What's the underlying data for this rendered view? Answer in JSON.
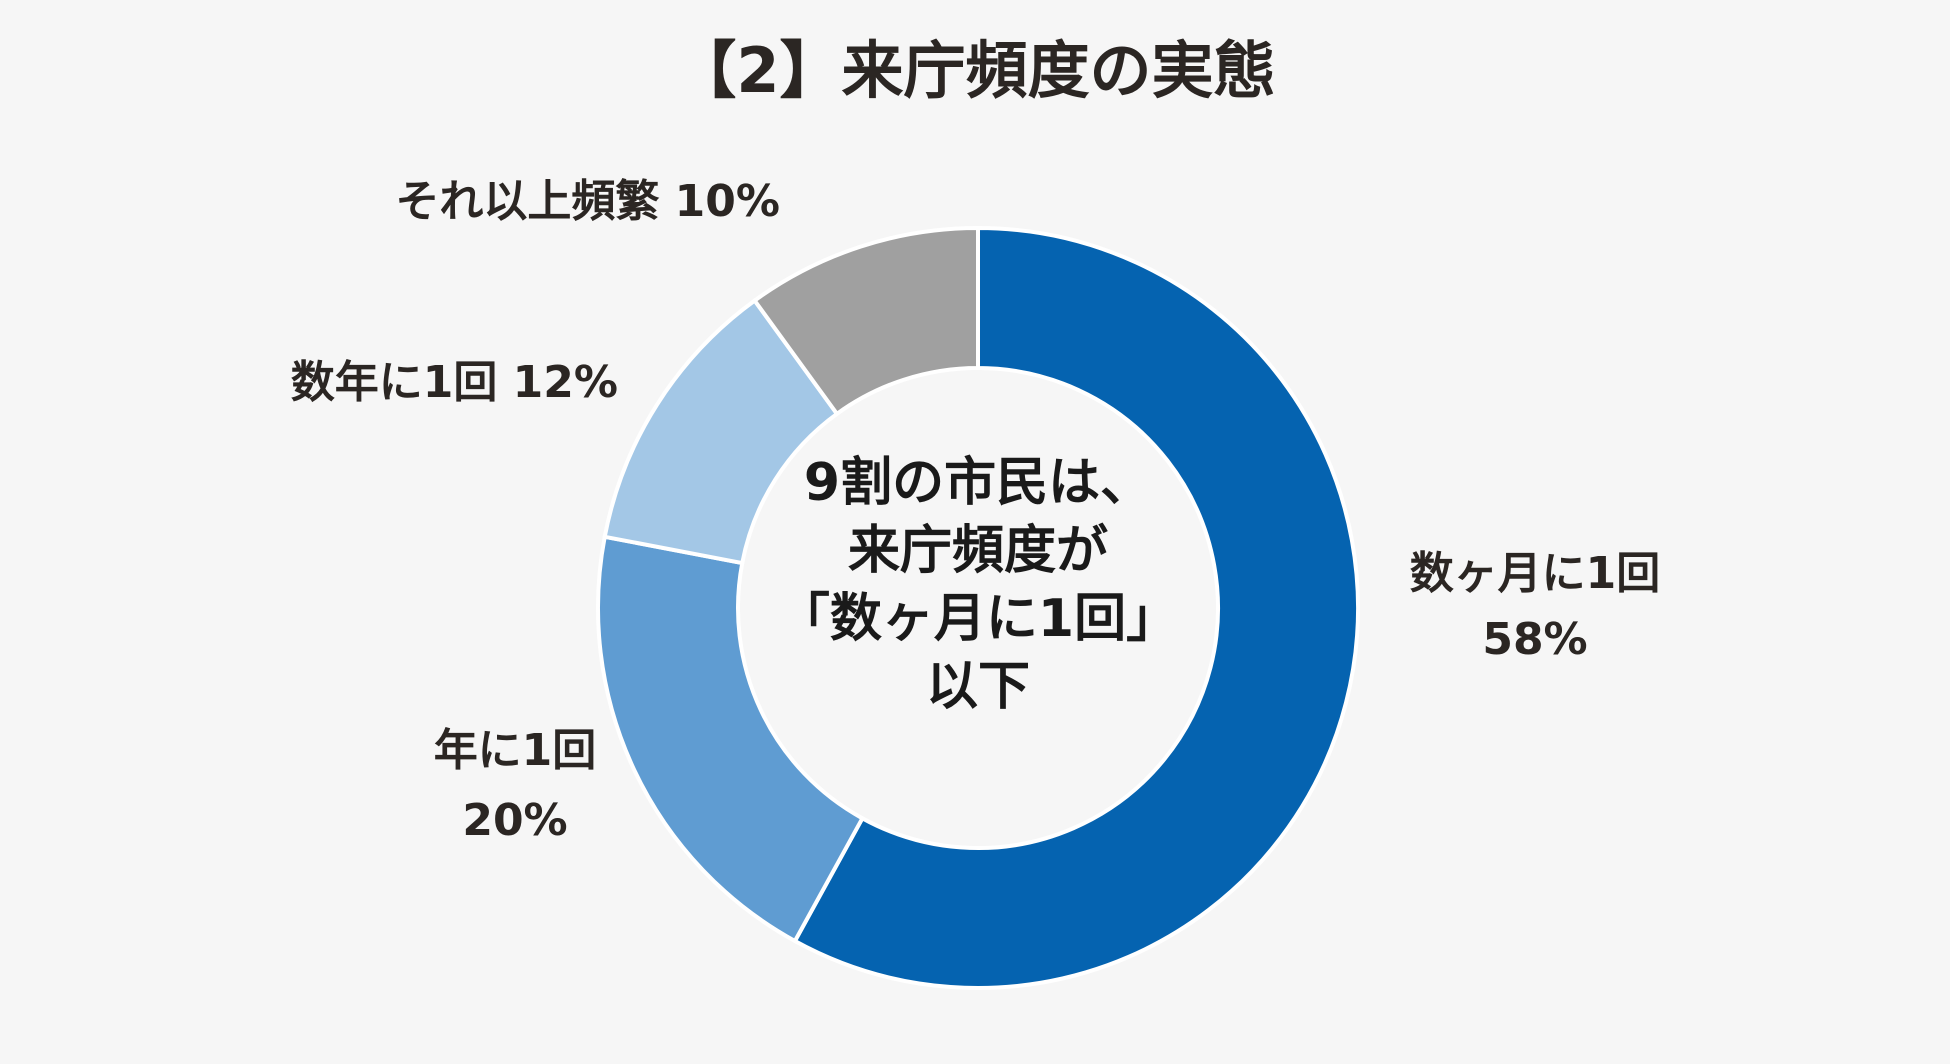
{
  "chart_data": {
    "type": "pie",
    "variant": "donut",
    "title": "【2】来庁頻度の実態",
    "categories": [
      "数ヶ月に1回",
      "年に1回",
      "数年に1回",
      "それ以上頻繁"
    ],
    "values": [
      58,
      20,
      12,
      10
    ],
    "unit": "%",
    "colors": [
      "#0563b0",
      "#5f9cd2",
      "#a3c7e6",
      "#a0a0a0"
    ],
    "slice_labels": [
      {
        "lines": [
          "数ヶ月に1回",
          "58%"
        ]
      },
      {
        "lines": [
          "年に1回",
          "20%"
        ]
      },
      {
        "lines": [
          "数年に1回 12%"
        ]
      },
      {
        "lines": [
          "それ以上頻繁 10%"
        ]
      }
    ],
    "center_text": [
      "9割の市民は、",
      "来庁頻度が",
      "「数ヶ月に1回」",
      "以下"
    ],
    "legend": "none",
    "grid": false
  }
}
